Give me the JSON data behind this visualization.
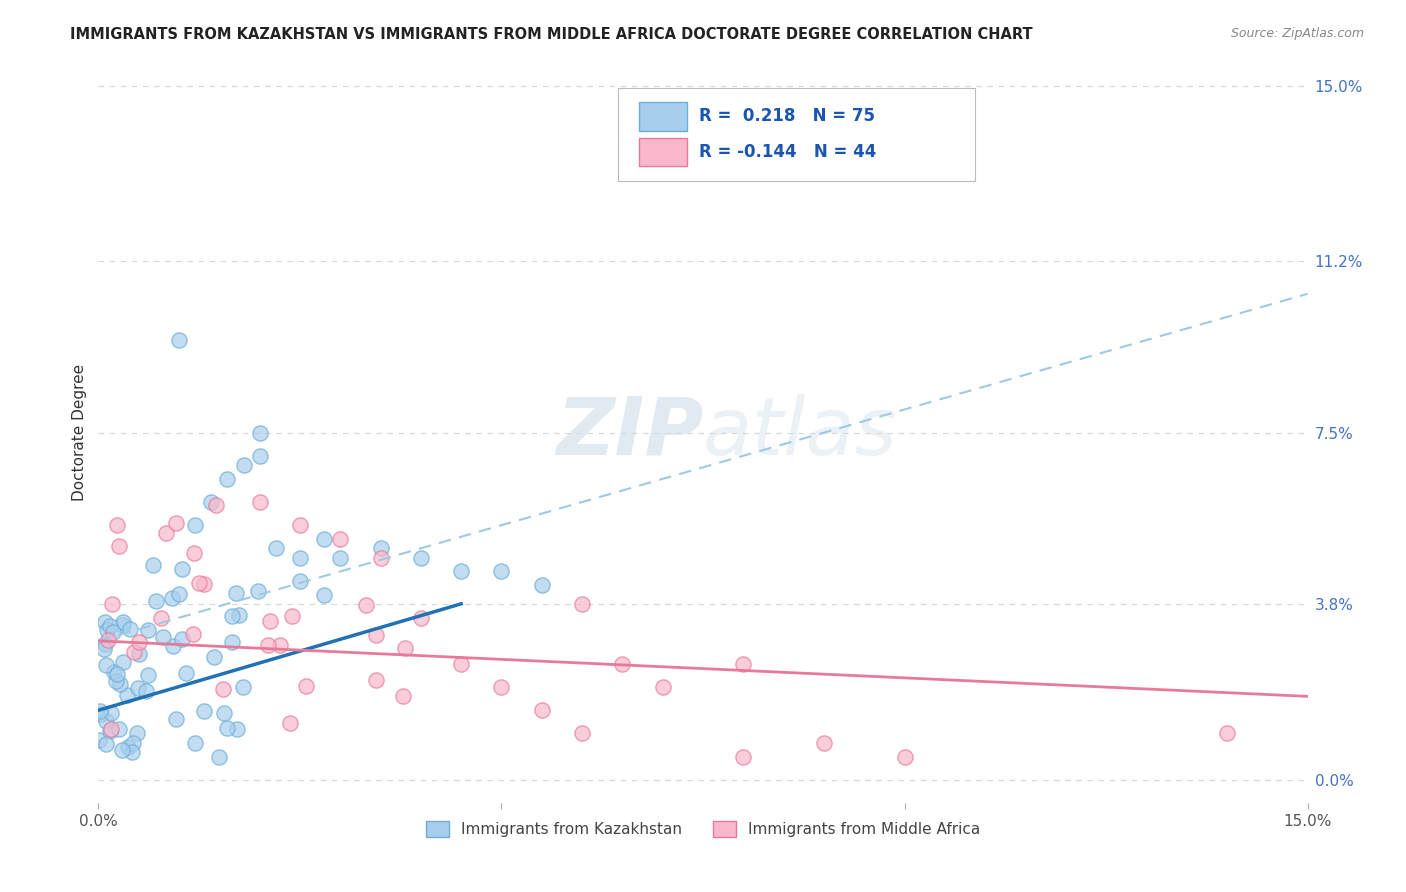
{
  "title": "IMMIGRANTS FROM KAZAKHSTAN VS IMMIGRANTS FROM MIDDLE AFRICA DOCTORATE DEGREE CORRELATION CHART",
  "source": "Source: ZipAtlas.com",
  "ylabel": "Doctorate Degree",
  "xlim": [
    0.0,
    0.15
  ],
  "ylim": [
    -0.005,
    0.155
  ],
  "x_ticks": [
    0.0,
    0.05,
    0.1,
    0.15
  ],
  "x_tick_labels": [
    "0.0%",
    "",
    "",
    "15.0%"
  ],
  "y_ticks": [
    0.0,
    0.038,
    0.075,
    0.112,
    0.15
  ],
  "y_tick_labels": [
    "0.0%",
    "3.8%",
    "7.5%",
    "11.2%",
    "15.0%"
  ],
  "legend_text1": "R =  0.218   N = 75",
  "legend_text2": "R = -0.144   N = 44",
  "color_kaz": "#A8CEED",
  "color_kaz_border": "#6BAED6",
  "color_africa": "#F9B8CC",
  "color_africa_border": "#E8799A",
  "color_kaz_line_solid": "#2171B5",
  "color_kaz_line_dash": "#9ECAE1",
  "color_africa_line": "#E8799A",
  "color_blue_text": "#4472C4",
  "color_blue_bold": "#1A56B0",
  "watermark_color": "#D0DCE8",
  "background_color": "#FFFFFF",
  "grid_color": "#CCCCCC",
  "kaz_line_solid_x0": 0.0,
  "kaz_line_solid_y0": 0.015,
  "kaz_line_solid_x1": 0.045,
  "kaz_line_solid_y1": 0.038,
  "kaz_line_dash_x0": 0.0,
  "kaz_line_dash_y0": 0.03,
  "kaz_line_dash_x1": 0.15,
  "kaz_line_dash_y1": 0.105,
  "africa_line_x0": 0.0,
  "africa_line_y0": 0.03,
  "africa_line_x1": 0.15,
  "africa_line_y1": 0.018
}
